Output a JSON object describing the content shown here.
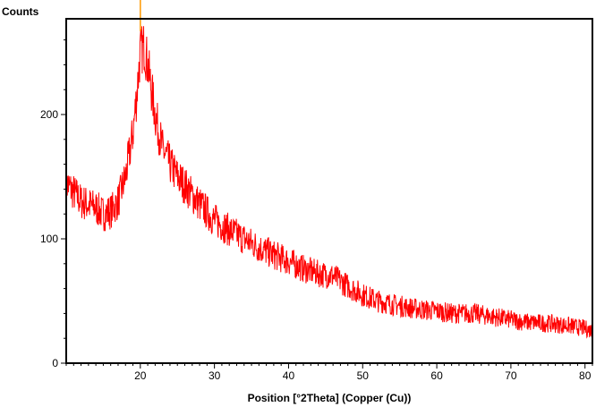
{
  "chart_data": {
    "type": "line",
    "ylabel": "Counts",
    "xlabel": "Position [°2Theta] (Copper (Cu))",
    "xlim": [
      10,
      81
    ],
    "ylim": [
      0,
      277
    ],
    "x_ticks": [
      20,
      30,
      40,
      50,
      60,
      70,
      80
    ],
    "y_ticks": [
      0,
      100,
      200
    ],
    "grid": false,
    "series": [
      {
        "color": "#ff0000",
        "x": [
          10,
          12,
          14,
          15,
          16,
          17,
          18,
          19,
          19.5,
          20,
          20.5,
          21,
          22,
          23,
          24,
          25,
          26,
          27,
          28,
          30,
          32,
          34,
          36,
          38,
          40,
          42,
          44,
          46,
          48,
          50,
          52,
          55,
          58,
          60,
          62,
          65,
          68,
          70,
          72,
          75,
          78,
          80,
          81
        ],
        "values": [
          145,
          130,
          125,
          120,
          122,
          130,
          150,
          185,
          215,
          250,
          255,
          240,
          200,
          172,
          160,
          150,
          143,
          135,
          128,
          115,
          107,
          100,
          93,
          87,
          82,
          76,
          72,
          70,
          62,
          55,
          50,
          46,
          43,
          42,
          40,
          40,
          37,
          35,
          33,
          32,
          30,
          28,
          26
        ]
      }
    ],
    "markers": [
      {
        "x": 20,
        "color": "#ff9900"
      }
    ]
  }
}
